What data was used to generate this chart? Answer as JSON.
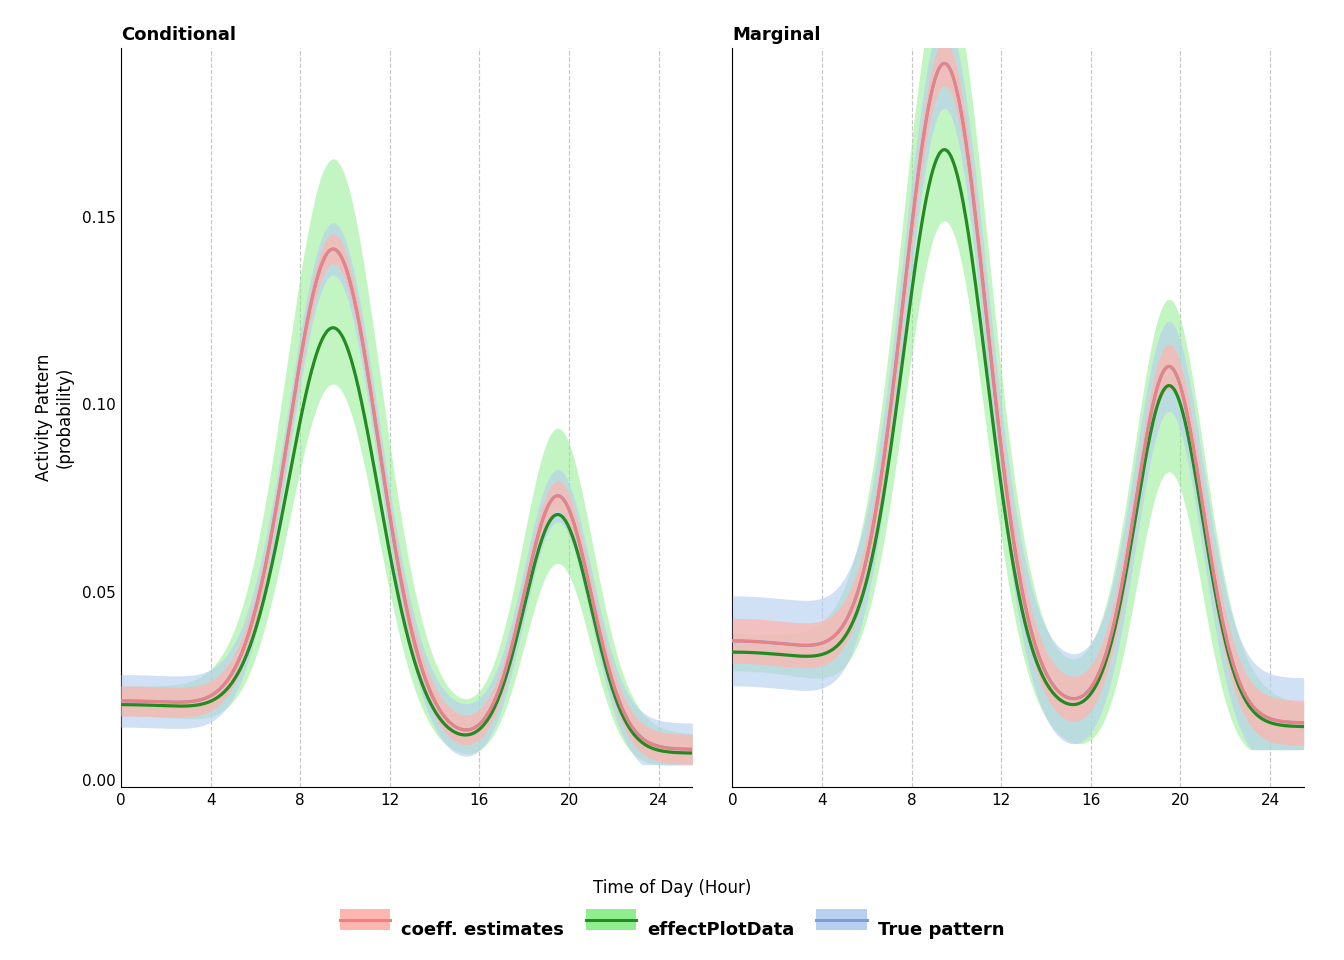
{
  "title_left": "Conditional",
  "title_right": "Marginal",
  "xlabel": "Time of Day (Hour)",
  "ylabel": "Activity Pattern\n(probability)",
  "xlim": [
    0,
    25.5
  ],
  "ylim": [
    -0.002,
    0.195
  ],
  "yticks": [
    0.0,
    0.05,
    0.1,
    0.15
  ],
  "xticks": [
    0,
    4,
    8,
    12,
    16,
    20,
    24
  ],
  "vline_positions": [
    0,
    4,
    8,
    12,
    16,
    20,
    24
  ],
  "colors": {
    "coeff_line": "#F08080",
    "coeff_fill": "#FFB6B0",
    "effect_line": "#228B22",
    "effect_fill": "#90EE90",
    "true_line": "#7B9ED9",
    "true_fill": "#B8D0F0",
    "background": "#FFFFFF",
    "grid": "#C0C0C0"
  },
  "legend": {
    "coeff_label": "coeff. estimates",
    "effect_label": "effectPlotData",
    "true_label": "True pattern"
  }
}
